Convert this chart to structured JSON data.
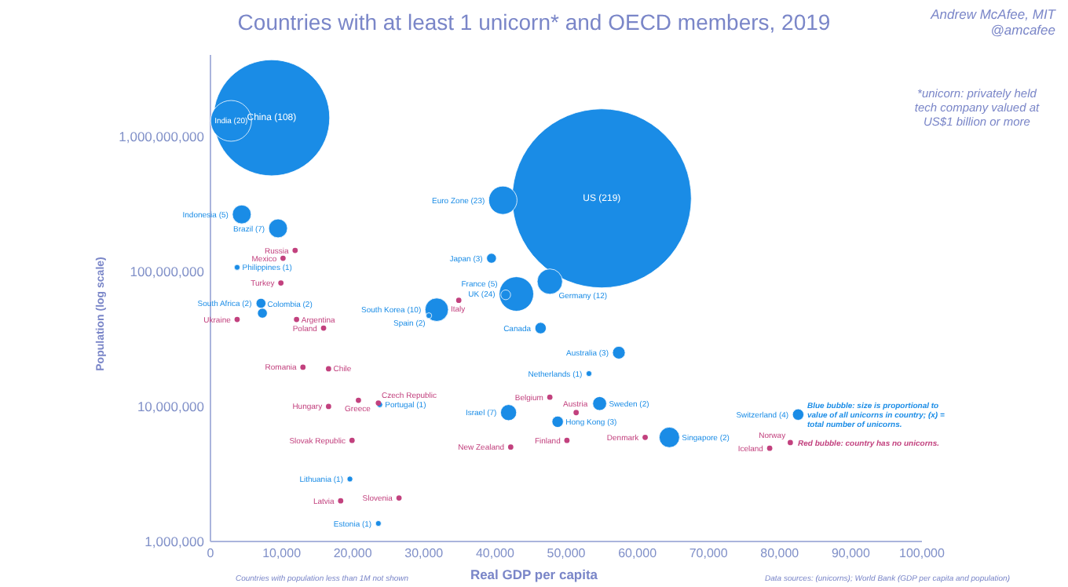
{
  "chart_data": {
    "type": "bubble",
    "title": "Countries with at least 1 unicorn* and OECD members, 2019",
    "xlabel": "Real GDP per capita",
    "ylabel": "Population (log scale)",
    "log": "y",
    "marker": "circle",
    "xlim": [
      0,
      100000
    ],
    "ylim": [
      1000000,
      4000000000
    ],
    "xticks": [
      0,
      {
        "value": 10000,
        "label": "10,000"
      },
      {
        "value": 20000,
        "label": "20,000"
      },
      {
        "value": 30000,
        "label": "30,000"
      },
      {
        "value": 40000,
        "label": "40,000"
      },
      {
        "value": 50000,
        "label": "50,000"
      },
      {
        "value": 60000,
        "label": "60,000"
      },
      {
        "value": 70000,
        "label": "70,000"
      },
      {
        "value": 80000,
        "label": "80,000"
      },
      {
        "value": 90000,
        "label": "90,000"
      },
      {
        "value": 100000,
        "label": "100,000"
      }
    ],
    "yticks": [
      {
        "value": 1000000,
        "label": "1,000,000"
      },
      {
        "value": 10000000,
        "label": "10,000,000"
      },
      {
        "value": 100000000,
        "label": "100,000,000"
      },
      {
        "value": 1000000000,
        "label": "1,000,000,000"
      }
    ],
    "series": [
      {
        "type": "bubble",
        "color": "#1a8ce6",
        "x": [
          8600,
          2900,
          55000,
          41100,
          4400,
          9500,
          39500,
          3750,
          47700,
          43000,
          41500,
          7100,
          31800,
          7300,
          30700,
          46400,
          57400,
          53200,
          54700,
          23800,
          41900,
          82600,
          48800,
          64500,
          19600,
          23600
        ],
        "values": [
          1370000000,
          1300000000,
          347000000,
          336000000,
          264000000,
          208000000,
          125000000,
          107000000,
          84000000,
          68000000,
          67000000,
          58000000,
          52000000,
          49000000,
          47000000,
          38000000,
          25000000,
          17500000,
          10500000,
          10300000,
          9000000,
          8700000,
          7700000,
          5900000,
          2900000,
          1360000
        ],
        "sizes": [
          0.42,
          0.052,
          1,
          0.025,
          0.011,
          0.011,
          0.003,
          0.001,
          0.02,
          0.037,
          0.003,
          0.003,
          0.017,
          0.003,
          0.001,
          0.004,
          0.005,
          0.001,
          0.006,
          0.001,
          0.008,
          0.004,
          0.004,
          0.013,
          0.001,
          0.001
        ]
      },
      {
        "type": "scatter",
        "color": "#c2417e",
        "x": [
          11900,
          10200,
          9900,
          34900,
          12100,
          3750,
          15900,
          13000,
          16600,
          47700,
          20800,
          23600,
          16600,
          51400,
          61100,
          19900,
          50100,
          81500,
          42200,
          78600,
          26500,
          18300
        ],
        "values": [
          143000000,
          125000000,
          82000000,
          61000000,
          44000000,
          44000000,
          38000000,
          19500000,
          19000000,
          11700000,
          11100000,
          10600000,
          10000000,
          9000000,
          5900000,
          5600000,
          5600000,
          5400000,
          5000000,
          4900000,
          2100000,
          2000000
        ]
      }
    ],
    "annotations": [
      "Andrew McAfee, MIT",
      "@amcafee",
      "*unicorn: privately held tech company valued at US$1 billion or more",
      "Blue bubble: size is proportional to value of all unicorns in country; (x) = total number of unicorns.",
      "Red bubble: country has no unicorns.",
      "Countries with population less than 1M not shown",
      "Data sources: (unicorns); World Bank (GDP per capita and population)",
      {
        "text": "China (108)",
        "x": 8600,
        "y": 1370000000
      },
      {
        "text": "India (20)",
        "x": 2900,
        "y": 1300000000
      },
      {
        "text": "US (219)",
        "x": 55000,
        "y": 347000000
      },
      {
        "text": "Euro Zone (23)",
        "x": 41100,
        "y": 336000000
      },
      {
        "text": "Indonesia (5)",
        "x": 4400,
        "y": 264000000
      },
      {
        "text": "Brazil (7)",
        "x": 9500,
        "y": 208000000
      },
      {
        "text": "Japan (3)",
        "x": 39500,
        "y": 125000000
      },
      {
        "text": "Philippines (1)",
        "x": 3750,
        "y": 107000000
      },
      {
        "text": "Germany (12)",
        "x": 47700,
        "y": 84000000
      },
      {
        "text": "UK (24)",
        "x": 43000,
        "y": 68000000
      },
      {
        "text": "France (5)",
        "x": 41500,
        "y": 67000000
      },
      {
        "text": "South Africa (2)",
        "x": 7100,
        "y": 58000000
      },
      {
        "text": "South Korea (10)",
        "x": 31800,
        "y": 52000000
      },
      {
        "text": "Colombia (2)",
        "x": 7300,
        "y": 49000000
      },
      {
        "text": "Spain (2)",
        "x": 30700,
        "y": 47000000
      },
      {
        "text": "Canada",
        "x": 46400,
        "y": 38000000
      },
      {
        "text": "Australia (3)",
        "x": 57400,
        "y": 25000000
      },
      {
        "text": "Netherlands (1)",
        "x": 53200,
        "y": 17500000
      },
      {
        "text": "Sweden (2)",
        "x": 54700,
        "y": 10500000
      },
      {
        "text": "Portugal (1)",
        "x": 23800,
        "y": 10300000
      },
      {
        "text": "Israel (7)",
        "x": 41900,
        "y": 9000000
      },
      {
        "text": "Switzerland (4)",
        "x": 82600,
        "y": 8700000
      },
      {
        "text": "Hong Kong (3)",
        "x": 48800,
        "y": 7700000
      },
      {
        "text": "Singapore (2)",
        "x": 64500,
        "y": 5900000
      },
      {
        "text": "Lithuania (1)",
        "x": 19600,
        "y": 2900000
      },
      {
        "text": "Estonia (1)",
        "x": 23600,
        "y": 1360000
      },
      {
        "text": "Russia",
        "x": 11900,
        "y": 143000000
      },
      {
        "text": "Mexico",
        "x": 10200,
        "y": 125000000
      },
      {
        "text": "Turkey",
        "x": 9900,
        "y": 82000000
      },
      {
        "text": "Italy",
        "x": 34900,
        "y": 61000000
      },
      {
        "text": "Argentina",
        "x": 12100,
        "y": 44000000
      },
      {
        "text": "Ukraine",
        "x": 3750,
        "y": 44000000
      },
      {
        "text": "Poland",
        "x": 15900,
        "y": 38000000
      },
      {
        "text": "Romania",
        "x": 13000,
        "y": 19500000
      },
      {
        "text": "Chile",
        "x": 16600,
        "y": 19000000
      },
      {
        "text": "Belgium",
        "x": 47700,
        "y": 11700000
      },
      {
        "text": "Greece",
        "x": 20800,
        "y": 11100000
      },
      {
        "text": "Czech Republic",
        "x": 23600,
        "y": 10600000
      },
      {
        "text": "Hungary",
        "x": 16600,
        "y": 10000000
      },
      {
        "text": "Austria",
        "x": 51400,
        "y": 9000000
      },
      {
        "text": "Denmark",
        "x": 61100,
        "y": 5900000
      },
      {
        "text": "Slovak Republic",
        "x": 19900,
        "y": 5600000
      },
      {
        "text": "Finland",
        "x": 50100,
        "y": 5600000
      },
      {
        "text": "Norway",
        "x": 81500,
        "y": 5400000
      },
      {
        "text": "New Zealand",
        "x": 42200,
        "y": 5000000
      },
      {
        "text": "Iceland",
        "x": 78600,
        "y": 4900000
      },
      {
        "text": "Slovenia",
        "x": 26500,
        "y": 2100000
      },
      {
        "text": "Latvia",
        "x": 18300,
        "y": 2000000
      }
    ]
  }
}
